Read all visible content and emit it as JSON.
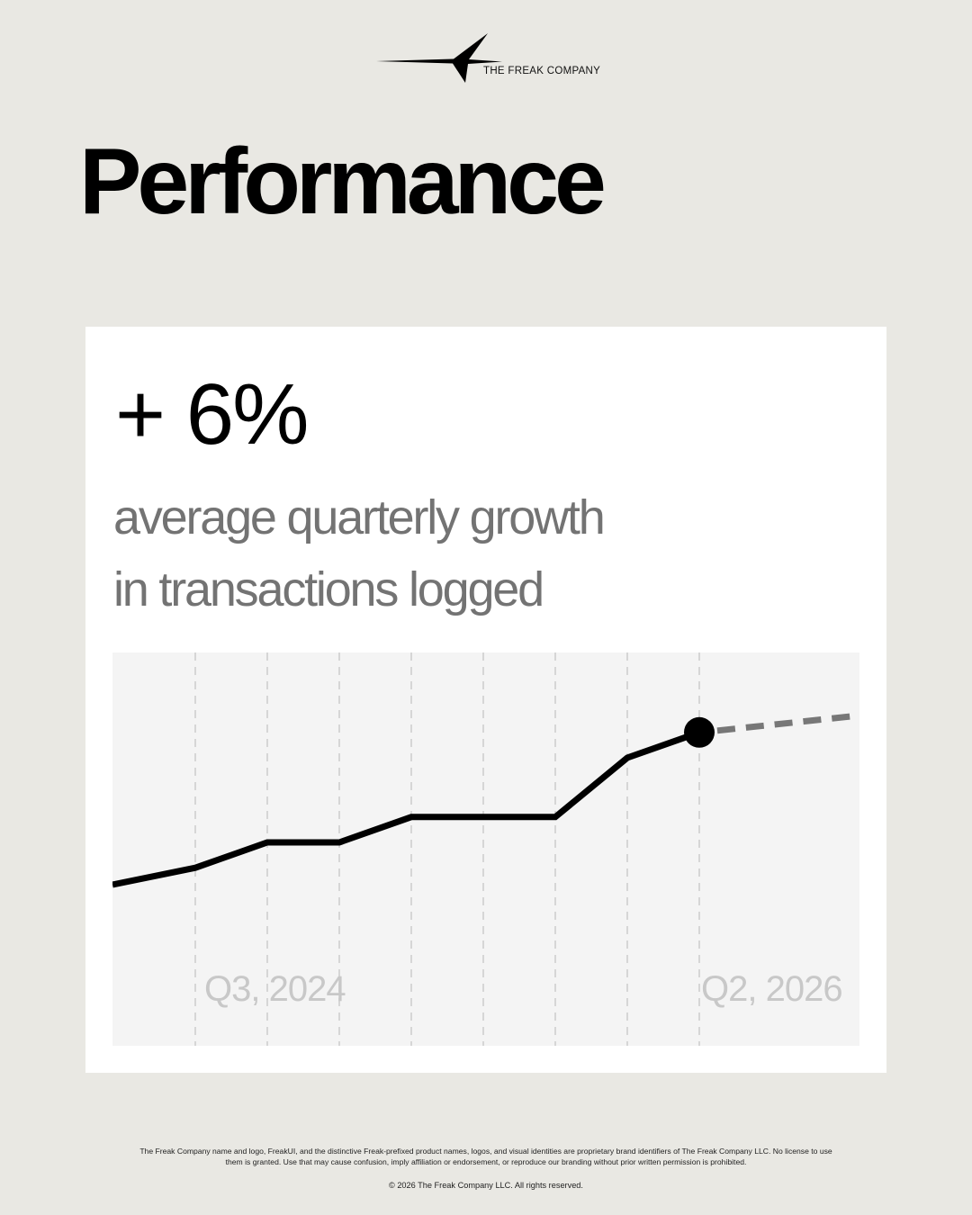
{
  "brand": {
    "name": "THE FREAK COMPANY",
    "logo_icon": "four-point-star-icon"
  },
  "page": {
    "title": "Performance"
  },
  "card": {
    "headline_value": "+ 6%",
    "subtitle_lines": [
      "average quarterly growth",
      "in transactions logged"
    ]
  },
  "chart_data": {
    "type": "line",
    "series": [
      {
        "values": [
          20,
          24,
          30,
          30,
          36,
          36,
          36,
          50,
          56
        ],
        "style": "solid",
        "color": "#000000"
      },
      {
        "values": [
          56,
          60
        ],
        "style": "dashed",
        "color": "#777777"
      }
    ],
    "x_labels": [
      "Q3, 2024",
      "Q2, 2026"
    ],
    "grid": "vertical dashed lines",
    "background": "#f4f4f4",
    "marker": "filled circle at last actual point"
  },
  "footer": {
    "legal_line_1": "The Freak Company name and logo, FreakUI, and the distinctive Freak-prefixed product names, logos, and visual identities are proprietary brand identifiers of The Freak Company LLC. No license to use",
    "legal_line_2": "them is granted. Use that may cause confusion, imply affiliation or endorsement, or reproduce our branding without prior written permission is prohibited.",
    "copyright": "© 2026 The Freak Company LLC. All rights reserved."
  }
}
